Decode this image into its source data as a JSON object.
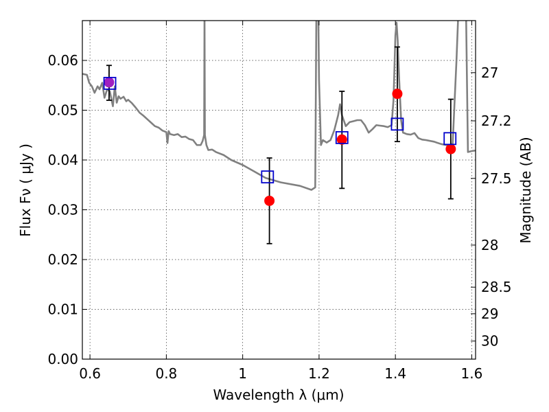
{
  "chart_data": {
    "type": "scatter",
    "title": "",
    "xlabel": "Wavelength  λ (μm)",
    "ylabel": "Flux  Fν  ( μJy )",
    "ylabel_right": "Magnitude (AB)",
    "xlim": [
      0.58,
      1.61
    ],
    "ylim": [
      0.0,
      0.068
    ],
    "x_ticks": [
      0.6,
      0.8,
      1.0,
      1.2,
      1.4,
      1.6
    ],
    "x_tick_labels": [
      "0.6",
      "0.8",
      "1",
      "1.2",
      "1.4",
      "1.6"
    ],
    "y_ticks": [
      0.0,
      0.01,
      0.02,
      0.03,
      0.04,
      0.05,
      0.06
    ],
    "y_tick_labels": [
      "0.00",
      "0.01",
      "0.02",
      "0.03",
      "0.04",
      "0.05",
      "0.06"
    ],
    "right_ticks": [
      {
        "mag": 27.0,
        "label": "27"
      },
      {
        "mag": 27.2,
        "label": "27.2"
      },
      {
        "mag": 27.5,
        "label": "27.5"
      },
      {
        "mag": 28.0,
        "label": "28"
      },
      {
        "mag": 28.5,
        "label": "28.5"
      },
      {
        "mag": 29.0,
        "label": "29"
      },
      {
        "mag": 30.0,
        "label": "30"
      }
    ],
    "grid": true,
    "colors": {
      "model": "#808080",
      "observed": "#ff0000",
      "observed_first": "#a020c0",
      "synthetic": "#0000cc",
      "errorbar": "#000000"
    },
    "series": [
      {
        "kind": "line",
        "x": [
          0.58,
          0.592,
          0.598,
          0.605,
          0.612,
          0.62,
          0.625,
          0.632,
          0.638,
          0.645,
          0.652,
          0.66,
          0.665,
          0.67,
          0.675,
          0.68,
          0.688,
          0.695,
          0.7,
          0.71,
          0.72,
          0.73,
          0.74,
          0.75,
          0.76,
          0.77,
          0.78,
          0.79,
          0.8,
          0.803,
          0.806,
          0.81,
          0.82,
          0.83,
          0.84,
          0.85,
          0.86,
          0.87,
          0.88,
          0.89,
          0.895,
          0.899,
          0.9,
          0.901,
          0.905,
          0.91,
          0.92,
          0.93,
          0.95,
          0.97,
          1.0,
          1.03,
          1.06,
          1.1,
          1.15,
          1.18,
          1.19,
          1.193,
          1.198,
          1.2,
          1.205,
          1.21,
          1.22,
          1.23,
          1.24,
          1.25,
          1.255,
          1.26,
          1.27,
          1.28,
          1.29,
          1.3,
          1.31,
          1.32,
          1.33,
          1.34,
          1.35,
          1.36,
          1.37,
          1.38,
          1.39,
          1.395,
          1.4,
          1.403,
          1.406,
          1.41,
          1.415,
          1.42,
          1.43,
          1.44,
          1.45,
          1.46,
          1.47,
          1.48,
          1.5,
          1.52,
          1.54,
          1.55,
          1.56,
          1.565,
          1.57,
          1.575,
          1.58,
          1.585,
          1.59,
          1.6,
          1.61
        ],
        "y": [
          0.0573,
          0.0571,
          0.0555,
          0.0548,
          0.0535,
          0.0548,
          0.0542,
          0.0555,
          0.0525,
          0.0542,
          0.0538,
          0.0508,
          0.0548,
          0.0515,
          0.0528,
          0.0523,
          0.0527,
          0.0518,
          0.0521,
          0.0514,
          0.0505,
          0.0495,
          0.0489,
          0.0482,
          0.0475,
          0.0468,
          0.0465,
          0.0459,
          0.0456,
          0.0434,
          0.0458,
          0.0452,
          0.045,
          0.0452,
          0.0446,
          0.0447,
          0.0442,
          0.044,
          0.043,
          0.043,
          0.0438,
          0.045,
          0.07,
          0.045,
          0.043,
          0.042,
          0.0421,
          0.0416,
          0.041,
          0.04,
          0.039,
          0.0377,
          0.0364,
          0.0355,
          0.0348,
          0.034,
          0.0345,
          0.07,
          0.07,
          0.056,
          0.043,
          0.044,
          0.0435,
          0.044,
          0.046,
          0.049,
          0.0512,
          0.049,
          0.0468,
          0.0476,
          0.0478,
          0.048,
          0.048,
          0.047,
          0.0455,
          0.0462,
          0.047,
          0.0469,
          0.0468,
          0.0466,
          0.047,
          0.052,
          0.065,
          0.0676,
          0.064,
          0.056,
          0.048,
          0.0455,
          0.0452,
          0.0451,
          0.0454,
          0.0444,
          0.0441,
          0.044,
          0.0437,
          0.0432,
          0.0429,
          0.0433,
          0.06,
          0.07,
          0.07,
          0.07,
          0.07,
          0.07,
          0.0416,
          0.0418,
          0.0419
        ]
      },
      {
        "kind": "errorbar-points",
        "x": [
          0.65,
          1.07,
          1.26,
          1.405,
          1.545
        ],
        "y": [
          0.0556,
          0.0318,
          0.0441,
          0.0533,
          0.0422
        ],
        "yerr_low": [
          0.052,
          0.0232,
          0.0343,
          0.0437,
          0.0322
        ],
        "yerr_high": [
          0.059,
          0.0404,
          0.0538,
          0.0627,
          0.0522
        ]
      },
      {
        "kind": "open-squares",
        "x": [
          0.652,
          1.065,
          1.26,
          1.405,
          1.543
        ],
        "y": [
          0.0554,
          0.0366,
          0.0445,
          0.0472,
          0.0443
        ]
      }
    ]
  }
}
